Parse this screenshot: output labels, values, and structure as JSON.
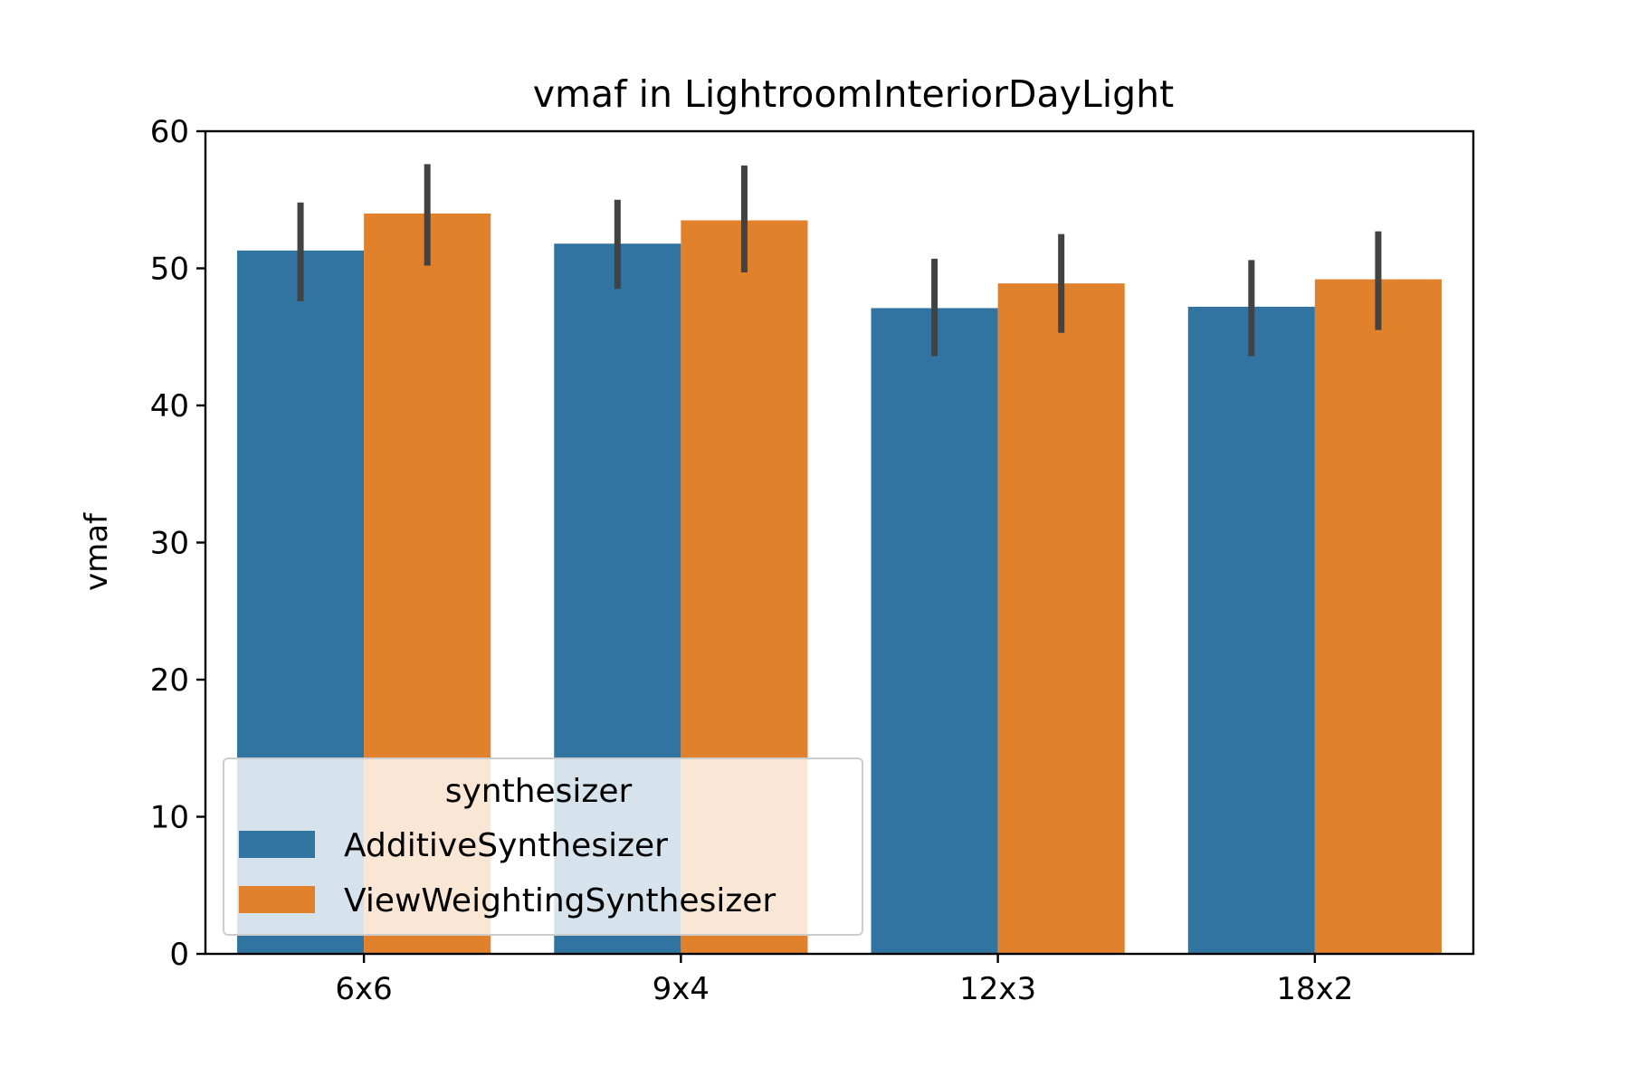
{
  "chart_data": {
    "type": "bar",
    "title": "vmaf in LightroomInteriorDayLight",
    "xlabel": "",
    "ylabel": "vmaf",
    "ylim": [
      0,
      60
    ],
    "yticks": [
      0,
      10,
      20,
      30,
      40,
      50,
      60
    ],
    "categories": [
      "6x6",
      "9x4",
      "12x3",
      "18x2"
    ],
    "series": [
      {
        "name": "AdditiveSynthesizer",
        "color": "#3274a1",
        "values": [
          51.3,
          51.8,
          47.1,
          47.2
        ],
        "error_low": [
          47.6,
          48.5,
          43.6,
          43.6
        ],
        "error_high": [
          54.8,
          55.0,
          50.7,
          50.6
        ]
      },
      {
        "name": "ViewWeightingSynthesizer",
        "color": "#e1812c",
        "values": [
          54.0,
          53.5,
          48.9,
          49.2
        ],
        "error_low": [
          50.2,
          49.7,
          45.3,
          45.5
        ],
        "error_high": [
          57.6,
          57.5,
          52.5,
          52.7
        ]
      }
    ],
    "legend": {
      "title": "synthesizer",
      "position": "lower-left"
    },
    "grid": false
  }
}
